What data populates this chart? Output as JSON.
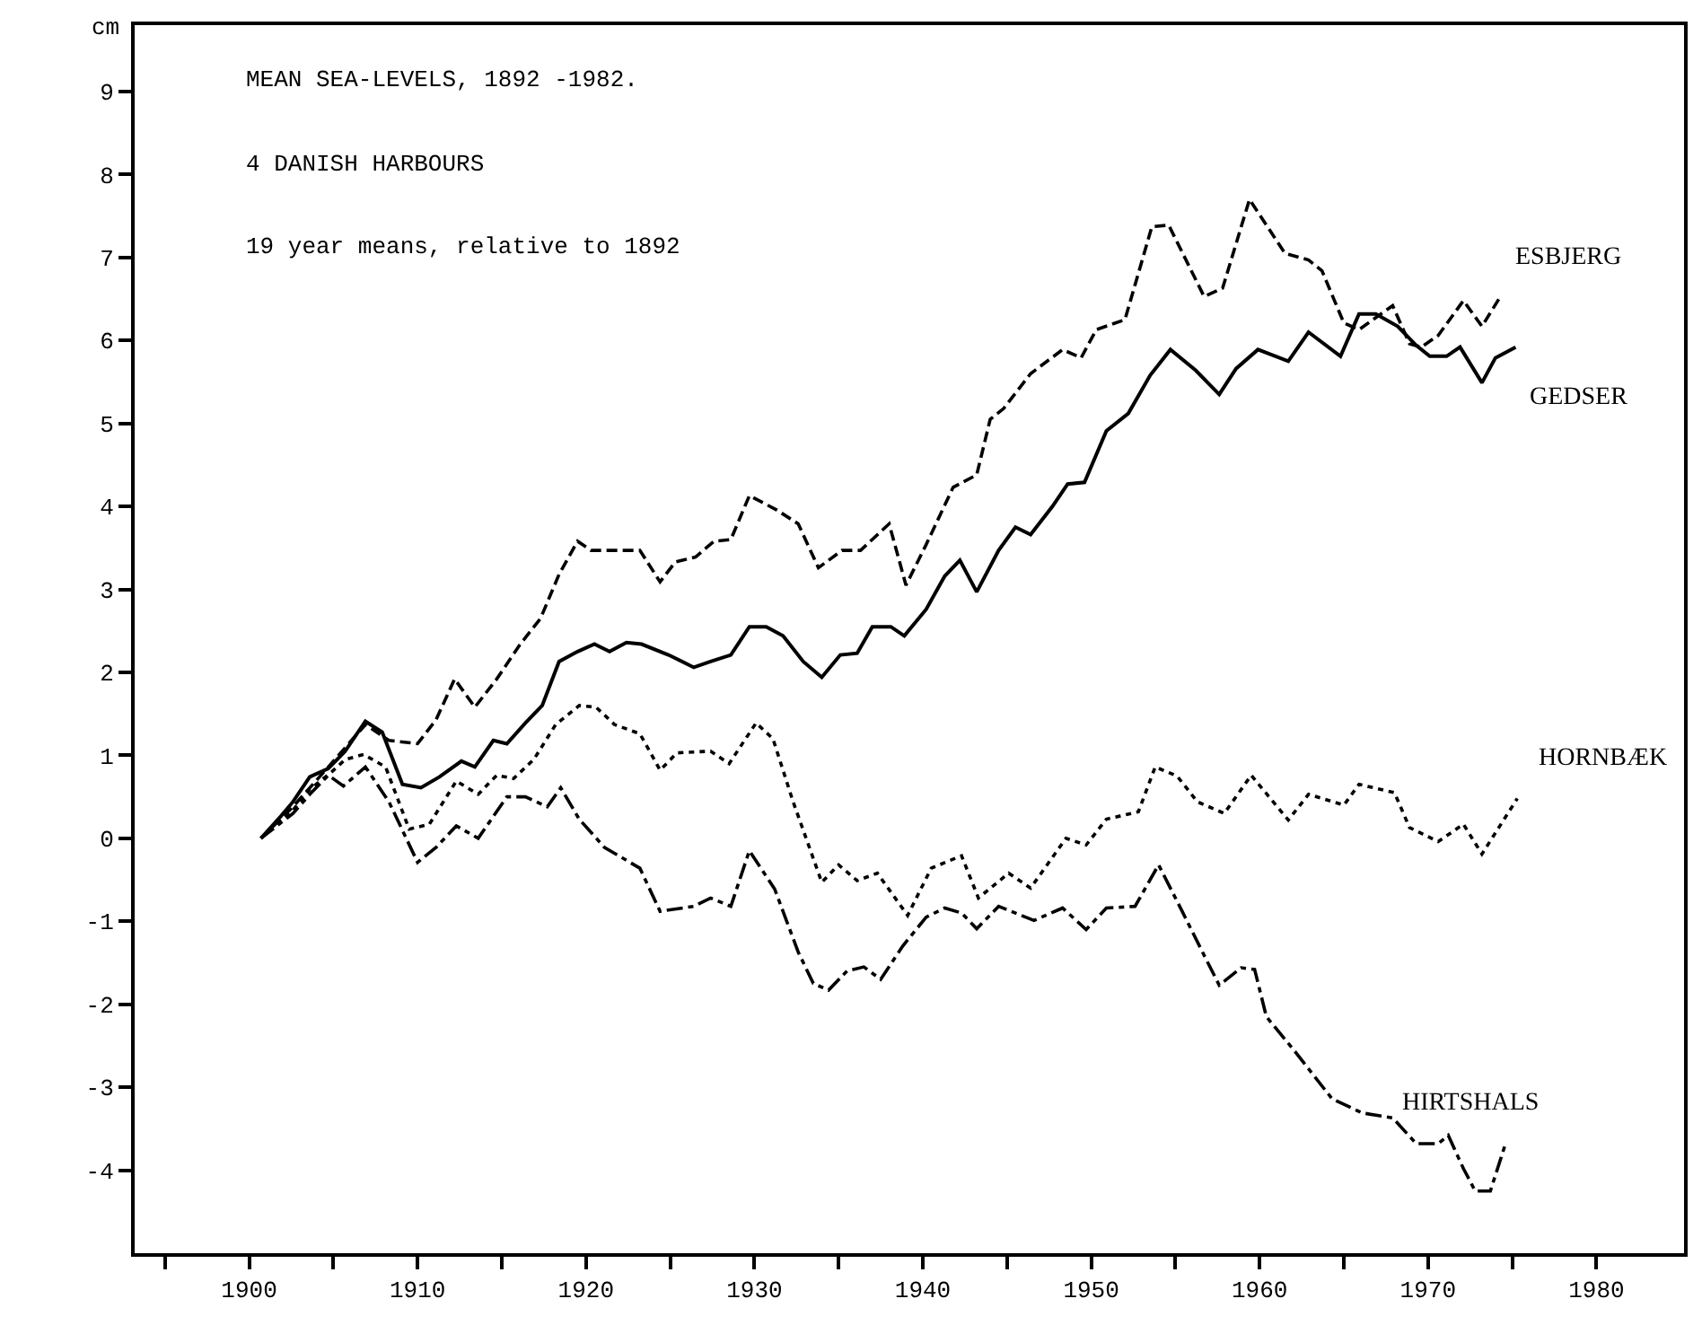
{
  "chart_data": {
    "type": "line",
    "title": "MEAN SEA-LEVELS, 1892 -1982.",
    "subtitle": "4 DANISH HARBOURS",
    "annotations": [
      "19 year means, relative to 1892"
    ],
    "ylabel": "cm",
    "xlim": [
      1893.2,
      1985.2
    ],
    "xticks": [
      {
        "value": 1895,
        "label": null
      },
      1900,
      {
        "value": 1905,
        "label": null
      },
      1910,
      {
        "value": 1915,
        "label": null
      },
      1920,
      {
        "value": 1925,
        "label": null
      },
      1930,
      {
        "value": 1935,
        "label": null
      },
      1940,
      {
        "value": 1945,
        "label": null
      },
      1950,
      {
        "value": 1955,
        "label": null
      },
      1960,
      {
        "value": 1965,
        "label": null
      },
      1970,
      {
        "value": 1975,
        "label": null
      },
      1980
    ],
    "ylim": [
      -5,
      9.8
    ],
    "yticks": [
      -4,
      -3,
      -2,
      -1,
      0,
      1,
      2,
      3,
      4,
      5,
      6,
      7,
      8,
      9
    ],
    "grid": false,
    "legend": false,
    "marker": "none",
    "series": [
      {
        "name": "ESBJERG",
        "color": "#000000",
        "line_style": "dashed",
        "x": [
          1900.7,
          1902.6,
          1904.7,
          1906.9,
          1908.3,
          1910.0,
          1911.1,
          1912.2,
          1913.4,
          1914.7,
          1916.1,
          1917.3,
          1918.4,
          1919.5,
          1920.3,
          1923.2,
          1924.4,
          1925.3,
          1926.5,
          1927.6,
          1928.6,
          1929.7,
          1931.3,
          1932.6,
          1933.8,
          1935.2,
          1936.3,
          1938.0,
          1939.0,
          1940.2,
          1941.8,
          1943.2,
          1944.0,
          1944.8,
          1946.4,
          1948.3,
          1949.4,
          1950.3,
          1952.0,
          1953.6,
          1954.6,
          1956.7,
          1957.8,
          1959.4,
          1961.5,
          1962.9,
          1963.7,
          1965.0,
          1965.9,
          1967.9,
          1968.9,
          1969.6,
          1970.6,
          1972.1,
          1973.2,
          1974.3
        ],
        "values": [
          0,
          0.38,
          0.86,
          1.37,
          1.18,
          1.14,
          1.43,
          1.92,
          1.58,
          1.92,
          2.34,
          2.65,
          3.18,
          3.58,
          3.47,
          3.47,
          3.09,
          3.33,
          3.39,
          3.58,
          3.6,
          4.13,
          3.96,
          3.79,
          3.26,
          3.47,
          3.47,
          3.79,
          3.05,
          3.54,
          4.23,
          4.38,
          5.05,
          5.18,
          5.6,
          5.89,
          5.79,
          6.13,
          6.25,
          7.37,
          7.39,
          6.53,
          6.63,
          7.7,
          7.05,
          6.97,
          6.84,
          6.21,
          6.13,
          6.42,
          5.96,
          5.92,
          6.06,
          6.48,
          6.17,
          6.53
        ]
      },
      {
        "name": "GEDSER",
        "color": "#000000",
        "line_style": "solid",
        "x": [
          1900.7,
          1901.9,
          1902.6,
          1903.6,
          1904.7,
          1905.7,
          1906.9,
          1907.9,
          1909.1,
          1910.2,
          1911.3,
          1912.6,
          1913.4,
          1914.5,
          1915.3,
          1916.4,
          1917.4,
          1918.4,
          1919.5,
          1920.5,
          1921.4,
          1922.4,
          1923.3,
          1924.9,
          1926.4,
          1927.4,
          1928.6,
          1929.7,
          1930.7,
          1931.7,
          1932.9,
          1934.0,
          1935.1,
          1936.1,
          1937.0,
          1938.1,
          1938.9,
          1940.2,
          1941.3,
          1942.2,
          1943.2,
          1944.5,
          1945.5,
          1946.4,
          1947.7,
          1948.6,
          1949.6,
          1950.9,
          1952.2,
          1953.5,
          1954.7,
          1956.2,
          1957.6,
          1958.6,
          1959.9,
          1961.7,
          1962.9,
          1964.8,
          1965.9,
          1966.9,
          1968.2,
          1969.3,
          1970.1,
          1971.1,
          1971.9,
          1973.2,
          1974.0,
          1975.2
        ],
        "values": [
          0,
          0.27,
          0.44,
          0.74,
          0.84,
          1.05,
          1.41,
          1.28,
          0.65,
          0.61,
          0.74,
          0.93,
          0.86,
          1.18,
          1.14,
          1.39,
          1.6,
          2.13,
          2.25,
          2.34,
          2.25,
          2.36,
          2.34,
          2.21,
          2.06,
          2.13,
          2.21,
          2.55,
          2.55,
          2.44,
          2.13,
          1.94,
          2.21,
          2.23,
          2.55,
          2.55,
          2.44,
          2.76,
          3.16,
          3.35,
          2.97,
          3.47,
          3.75,
          3.66,
          4.0,
          4.27,
          4.29,
          4.91,
          5.12,
          5.58,
          5.89,
          5.64,
          5.35,
          5.66,
          5.89,
          5.75,
          6.1,
          5.81,
          6.32,
          6.32,
          6.17,
          5.94,
          5.81,
          5.81,
          5.92,
          5.49,
          5.79,
          5.92
        ]
      },
      {
        "name": "HORNBÆK",
        "color": "#000000",
        "line_style": "dotted",
        "x": [
          1900.7,
          1902.6,
          1903.6,
          1904.9,
          1905.7,
          1906.8,
          1908.1,
          1909.5,
          1910.7,
          1912.3,
          1913.6,
          1914.7,
          1915.7,
          1916.9,
          1918.2,
          1919.6,
          1920.6,
          1921.7,
          1923.2,
          1924.4,
          1925.4,
          1927.4,
          1928.5,
          1930.1,
          1931.1,
          1932.3,
          1934.0,
          1935.0,
          1936.1,
          1937.3,
          1939.1,
          1940.5,
          1942.3,
          1943.3,
          1945.1,
          1946.4,
          1948.5,
          1949.7,
          1950.9,
          1952.8,
          1953.8,
          1955.1,
          1956.3,
          1957.9,
          1959.5,
          1961.7,
          1962.9,
          1965.0,
          1965.9,
          1968.0,
          1968.9,
          1970.6,
          1972.1,
          1973.2,
          1975.3
        ],
        "values": [
          0,
          0.34,
          0.59,
          0.8,
          0.95,
          1.01,
          0.86,
          0.11,
          0.17,
          0.69,
          0.53,
          0.76,
          0.72,
          0.95,
          1.37,
          1.6,
          1.58,
          1.37,
          1.26,
          0.82,
          1.03,
          1.05,
          0.9,
          1.39,
          1.2,
          0.44,
          -0.53,
          -0.32,
          -0.51,
          -0.42,
          -0.93,
          -0.36,
          -0.21,
          -0.72,
          -0.42,
          -0.6,
          0,
          -0.08,
          0.23,
          0.32,
          0.86,
          0.75,
          0.44,
          0.3,
          0.76,
          0.22,
          0.53,
          0.4,
          0.65,
          0.55,
          0.13,
          -0.04,
          0.17,
          -0.19,
          0.48
        ]
      },
      {
        "name": "HIRTSHALS",
        "color": "#000000",
        "line_style": "dashdot",
        "x": [
          1900.7,
          1902.6,
          1903.6,
          1904.7,
          1905.6,
          1906.9,
          1908.3,
          1910.0,
          1911.1,
          1912.3,
          1913.6,
          1915.3,
          1916.4,
          1917.7,
          1918.5,
          1919.6,
          1921.1,
          1923.2,
          1924.4,
          1926.4,
          1927.4,
          1928.6,
          1929.7,
          1931.2,
          1932.6,
          1933.5,
          1934.4,
          1935.5,
          1936.5,
          1937.5,
          1938.8,
          1940.2,
          1941.3,
          1942.3,
          1943.2,
          1944.5,
          1946.6,
          1948.3,
          1949.7,
          1950.9,
          1952.6,
          1954.0,
          1955.4,
          1956.8,
          1957.6,
          1958.9,
          1959.7,
          1960.4,
          1962.1,
          1964.3,
          1966.1,
          1967.9,
          1969.3,
          1970.6,
          1971.2,
          1972.1,
          1972.8,
          1973.7,
          1974.6
        ],
        "values": [
          0,
          0.3,
          0.53,
          0.76,
          0.63,
          0.86,
          0.44,
          -0.29,
          -0.11,
          0.15,
          0,
          0.5,
          0.5,
          0.38,
          0.61,
          0.23,
          -0.11,
          -0.36,
          -0.88,
          -0.82,
          -0.72,
          -0.82,
          -0.15,
          -0.61,
          -1.37,
          -1.75,
          -1.83,
          -1.6,
          -1.55,
          -1.7,
          -1.3,
          -0.95,
          -0.84,
          -0.9,
          -1.09,
          -0.82,
          -0.99,
          -0.84,
          -1.1,
          -0.84,
          -0.82,
          -0.32,
          -0.88,
          -1.45,
          -1.77,
          -1.56,
          -1.58,
          -2.15,
          -2.57,
          -3.14,
          -3.31,
          -3.37,
          -3.68,
          -3.68,
          -3.58,
          -3.98,
          -4.25,
          -4.25,
          -3.68
        ]
      }
    ]
  }
}
